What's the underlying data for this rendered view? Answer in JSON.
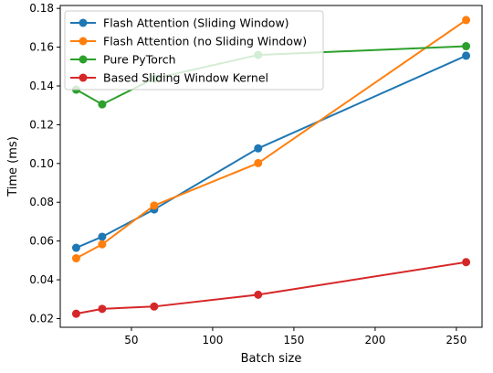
{
  "chart_data": {
    "type": "line",
    "title": "",
    "xlabel": "Batch size",
    "ylabel": "Time (ms)",
    "xlim": [
      6.2,
      265.8
    ],
    "ylim": [
      0.0155,
      0.1815
    ],
    "xticks": [
      50,
      100,
      150,
      200,
      250
    ],
    "xtick_labels": [
      "50",
      "100",
      "150",
      "200",
      "250"
    ],
    "yticks": [
      0.02,
      0.04,
      0.06,
      0.08,
      0.1,
      0.12,
      0.14,
      0.16,
      0.18
    ],
    "ytick_labels": [
      "0.02",
      "0.04",
      "0.06",
      "0.08",
      "0.10",
      "0.12",
      "0.14",
      "0.16",
      "0.18"
    ],
    "grid": false,
    "legend_position": "top-left",
    "x": [
      16,
      32,
      64,
      128,
      256
    ],
    "series": [
      {
        "name": "Flash Attention (Sliding Window)",
        "color": "#1f77b4",
        "values": [
          0.0565,
          0.0622,
          0.0763,
          0.1078,
          0.1556
        ]
      },
      {
        "name": "Flash Attention (no Sliding Window)",
        "color": "#ff7f0e",
        "values": [
          0.0511,
          0.0583,
          0.0783,
          0.1002,
          0.174
        ]
      },
      {
        "name": "Pure PyTorch",
        "color": "#2ca02c",
        "values": [
          0.1381,
          0.1305,
          0.1438,
          0.156,
          0.1605
        ]
      },
      {
        "name": "Based Sliding Window Kernel",
        "color": "#d62728",
        "values": [
          0.0225,
          0.025,
          0.0262,
          0.0323,
          0.0491
        ]
      }
    ]
  }
}
